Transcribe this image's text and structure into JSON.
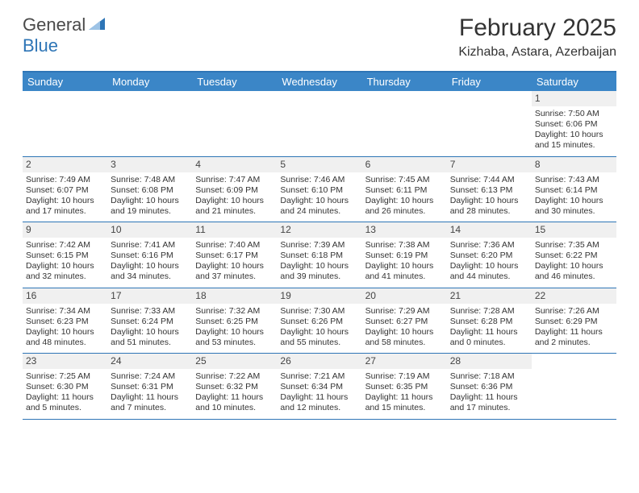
{
  "logo": {
    "text1": "General",
    "text2": "Blue"
  },
  "title": "February 2025",
  "location": "Kizhaba, Astara, Azerbaijan",
  "colors": {
    "header_bg": "#3b86c7",
    "border": "#2e75b6",
    "stripe": "#f0f0f0",
    "text": "#333333",
    "logo_gray": "#4a4a4a",
    "logo_blue": "#2e75b6"
  },
  "day_names": [
    "Sunday",
    "Monday",
    "Tuesday",
    "Wednesday",
    "Thursday",
    "Friday",
    "Saturday"
  ],
  "weeks": [
    [
      null,
      null,
      null,
      null,
      null,
      null,
      {
        "n": "1",
        "sr": "Sunrise: 7:50 AM",
        "ss": "Sunset: 6:06 PM",
        "d1": "Daylight: 10 hours",
        "d2": "and 15 minutes."
      }
    ],
    [
      {
        "n": "2",
        "sr": "Sunrise: 7:49 AM",
        "ss": "Sunset: 6:07 PM",
        "d1": "Daylight: 10 hours",
        "d2": "and 17 minutes."
      },
      {
        "n": "3",
        "sr": "Sunrise: 7:48 AM",
        "ss": "Sunset: 6:08 PM",
        "d1": "Daylight: 10 hours",
        "d2": "and 19 minutes."
      },
      {
        "n": "4",
        "sr": "Sunrise: 7:47 AM",
        "ss": "Sunset: 6:09 PM",
        "d1": "Daylight: 10 hours",
        "d2": "and 21 minutes."
      },
      {
        "n": "5",
        "sr": "Sunrise: 7:46 AM",
        "ss": "Sunset: 6:10 PM",
        "d1": "Daylight: 10 hours",
        "d2": "and 24 minutes."
      },
      {
        "n": "6",
        "sr": "Sunrise: 7:45 AM",
        "ss": "Sunset: 6:11 PM",
        "d1": "Daylight: 10 hours",
        "d2": "and 26 minutes."
      },
      {
        "n": "7",
        "sr": "Sunrise: 7:44 AM",
        "ss": "Sunset: 6:13 PM",
        "d1": "Daylight: 10 hours",
        "d2": "and 28 minutes."
      },
      {
        "n": "8",
        "sr": "Sunrise: 7:43 AM",
        "ss": "Sunset: 6:14 PM",
        "d1": "Daylight: 10 hours",
        "d2": "and 30 minutes."
      }
    ],
    [
      {
        "n": "9",
        "sr": "Sunrise: 7:42 AM",
        "ss": "Sunset: 6:15 PM",
        "d1": "Daylight: 10 hours",
        "d2": "and 32 minutes."
      },
      {
        "n": "10",
        "sr": "Sunrise: 7:41 AM",
        "ss": "Sunset: 6:16 PM",
        "d1": "Daylight: 10 hours",
        "d2": "and 34 minutes."
      },
      {
        "n": "11",
        "sr": "Sunrise: 7:40 AM",
        "ss": "Sunset: 6:17 PM",
        "d1": "Daylight: 10 hours",
        "d2": "and 37 minutes."
      },
      {
        "n": "12",
        "sr": "Sunrise: 7:39 AM",
        "ss": "Sunset: 6:18 PM",
        "d1": "Daylight: 10 hours",
        "d2": "and 39 minutes."
      },
      {
        "n": "13",
        "sr": "Sunrise: 7:38 AM",
        "ss": "Sunset: 6:19 PM",
        "d1": "Daylight: 10 hours",
        "d2": "and 41 minutes."
      },
      {
        "n": "14",
        "sr": "Sunrise: 7:36 AM",
        "ss": "Sunset: 6:20 PM",
        "d1": "Daylight: 10 hours",
        "d2": "and 44 minutes."
      },
      {
        "n": "15",
        "sr": "Sunrise: 7:35 AM",
        "ss": "Sunset: 6:22 PM",
        "d1": "Daylight: 10 hours",
        "d2": "and 46 minutes."
      }
    ],
    [
      {
        "n": "16",
        "sr": "Sunrise: 7:34 AM",
        "ss": "Sunset: 6:23 PM",
        "d1": "Daylight: 10 hours",
        "d2": "and 48 minutes."
      },
      {
        "n": "17",
        "sr": "Sunrise: 7:33 AM",
        "ss": "Sunset: 6:24 PM",
        "d1": "Daylight: 10 hours",
        "d2": "and 51 minutes."
      },
      {
        "n": "18",
        "sr": "Sunrise: 7:32 AM",
        "ss": "Sunset: 6:25 PM",
        "d1": "Daylight: 10 hours",
        "d2": "and 53 minutes."
      },
      {
        "n": "19",
        "sr": "Sunrise: 7:30 AM",
        "ss": "Sunset: 6:26 PM",
        "d1": "Daylight: 10 hours",
        "d2": "and 55 minutes."
      },
      {
        "n": "20",
        "sr": "Sunrise: 7:29 AM",
        "ss": "Sunset: 6:27 PM",
        "d1": "Daylight: 10 hours",
        "d2": "and 58 minutes."
      },
      {
        "n": "21",
        "sr": "Sunrise: 7:28 AM",
        "ss": "Sunset: 6:28 PM",
        "d1": "Daylight: 11 hours",
        "d2": "and 0 minutes."
      },
      {
        "n": "22",
        "sr": "Sunrise: 7:26 AM",
        "ss": "Sunset: 6:29 PM",
        "d1": "Daylight: 11 hours",
        "d2": "and 2 minutes."
      }
    ],
    [
      {
        "n": "23",
        "sr": "Sunrise: 7:25 AM",
        "ss": "Sunset: 6:30 PM",
        "d1": "Daylight: 11 hours",
        "d2": "and 5 minutes."
      },
      {
        "n": "24",
        "sr": "Sunrise: 7:24 AM",
        "ss": "Sunset: 6:31 PM",
        "d1": "Daylight: 11 hours",
        "d2": "and 7 minutes."
      },
      {
        "n": "25",
        "sr": "Sunrise: 7:22 AM",
        "ss": "Sunset: 6:32 PM",
        "d1": "Daylight: 11 hours",
        "d2": "and 10 minutes."
      },
      {
        "n": "26",
        "sr": "Sunrise: 7:21 AM",
        "ss": "Sunset: 6:34 PM",
        "d1": "Daylight: 11 hours",
        "d2": "and 12 minutes."
      },
      {
        "n": "27",
        "sr": "Sunrise: 7:19 AM",
        "ss": "Sunset: 6:35 PM",
        "d1": "Daylight: 11 hours",
        "d2": "and 15 minutes."
      },
      {
        "n": "28",
        "sr": "Sunrise: 7:18 AM",
        "ss": "Sunset: 6:36 PM",
        "d1": "Daylight: 11 hours",
        "d2": "and 17 minutes."
      },
      null
    ]
  ]
}
